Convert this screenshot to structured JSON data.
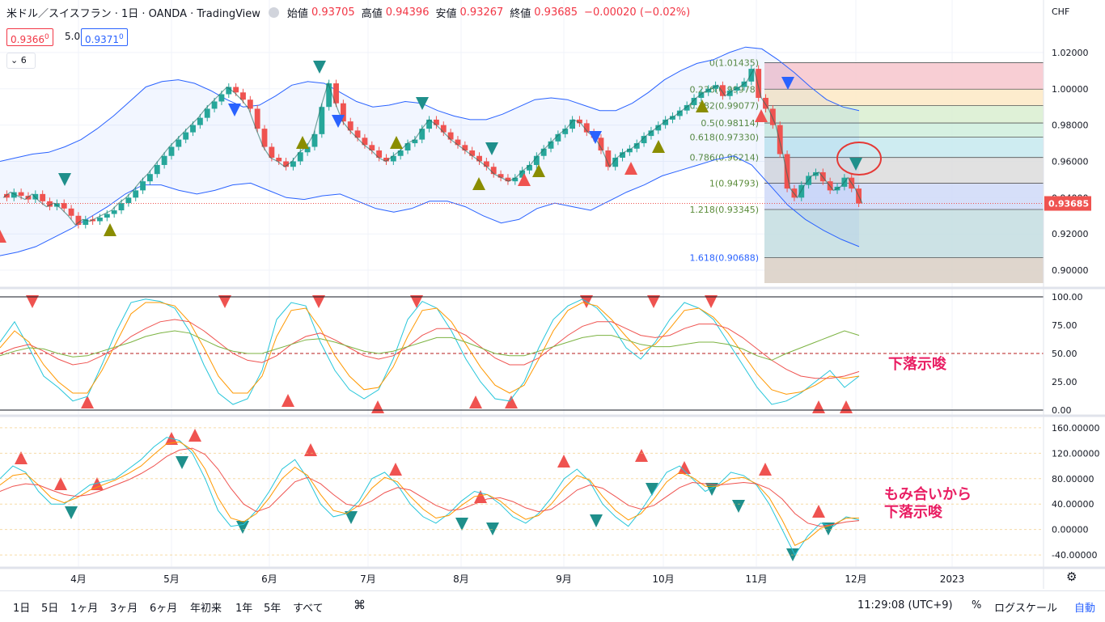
{
  "header": {
    "symbol": "米ドル／スイスフラン · 1日 · OANDA · TradingView",
    "open_label": "始値",
    "open_value": "0.93705",
    "high_label": "高値",
    "high_value": "0.94396",
    "low_label": "安値",
    "low_value": "0.93267",
    "close_label": "終値",
    "close_value": "0.93685",
    "change": "−0.00020 (−0.02%)"
  },
  "trade": {
    "bid": "0.9366",
    "bid_sup": "0",
    "spread": "5.0",
    "ask": "0.9371",
    "ask_sup": "0"
  },
  "indicators_toggle": "6",
  "currency": "CHF",
  "price_tag": "0.93685",
  "notes": {
    "rsi_note": "下落示唆",
    "macd_note_1": "もみ合いから",
    "macd_note_2": "下落示唆"
  },
  "bottom": {
    "timeframes": [
      "1日",
      "5日",
      "1ヶ月",
      "3ヶ月",
      "6ヶ月",
      "年初来",
      "1年",
      "5年",
      "すべて"
    ],
    "compare_icon": "calendar-range-icon",
    "time": "11:29:08 (UTC+9)",
    "percent": "%",
    "log": "ログスケール",
    "auto": "自動"
  },
  "colors": {
    "up": "#26a69a",
    "down": "#ef5350",
    "band": "#2962ff",
    "accent": "#2962ff"
  },
  "chart_data": [
    {
      "type": "candlestick",
      "name": "main",
      "x_ticks": [
        "4月",
        "5月",
        "6月",
        "7月",
        "8月",
        "9月",
        "10月",
        "11月",
        "12月",
        "2023"
      ],
      "y_ticks": [
        "1.02000",
        "1.00000",
        "0.98000",
        "0.96000",
        "0.94000",
        "0.92000",
        "0.90000"
      ],
      "ylim": [
        0.892,
        1.032
      ],
      "fib_levels": [
        {
          "label": "0(1.01435)",
          "value": 1.01435
        },
        {
          "label": "0.236(0.99978)",
          "value": 0.99978
        },
        {
          "label": "0.382(0.99077)",
          "value": 0.99077
        },
        {
          "label": "0.5(0.98114)",
          "value": 0.98114
        },
        {
          "label": "0.618(0.97330)",
          "value": 0.9733
        },
        {
          "label": "0.786(0.96214)",
          "value": 0.96214
        },
        {
          "label": "1(0.94793)",
          "value": 0.94793
        },
        {
          "label": "1.218(0.93345)",
          "value": 0.93345
        },
        {
          "label": "1.618(0.90688)",
          "value": 0.90688
        }
      ],
      "close_series": [
        0.94,
        0.943,
        0.941,
        0.939,
        0.942,
        0.938,
        0.935,
        0.937,
        0.934,
        0.93,
        0.925,
        0.928,
        0.927,
        0.929,
        0.931,
        0.933,
        0.937,
        0.94,
        0.944,
        0.949,
        0.953,
        0.958,
        0.963,
        0.968,
        0.972,
        0.976,
        0.98,
        0.984,
        0.989,
        0.993,
        0.997,
        1.001,
        0.998,
        0.994,
        0.989,
        0.978,
        0.968,
        0.962,
        0.96,
        0.957,
        0.96,
        0.965,
        0.968,
        0.975,
        0.99,
        1.003,
        0.992,
        0.982,
        0.977,
        0.973,
        0.969,
        0.966,
        0.962,
        0.96,
        0.963,
        0.966,
        0.97,
        0.972,
        0.978,
        0.983,
        0.98,
        0.976,
        0.972,
        0.969,
        0.966,
        0.963,
        0.96,
        0.957,
        0.953,
        0.951,
        0.949,
        0.951,
        0.955,
        0.958,
        0.963,
        0.967,
        0.971,
        0.975,
        0.978,
        0.983,
        0.981,
        0.976,
        0.973,
        0.966,
        0.957,
        0.962,
        0.965,
        0.967,
        0.97,
        0.974,
        0.977,
        0.98,
        0.983,
        0.985,
        0.988,
        0.991,
        0.995,
        0.998,
        1.0,
        1.002,
        0.996,
        0.999,
        1.001,
        1.004,
        1.011,
        0.995,
        0.989,
        0.98,
        0.964,
        0.945,
        0.94,
        0.947,
        0.952,
        0.954,
        0.949,
        0.944,
        0.946,
        0.951,
        0.945,
        0.9368
      ],
      "bollinger_upper": [
        0.96,
        0.962,
        0.964,
        0.965,
        0.968,
        0.972,
        0.978,
        0.985,
        0.993,
        1.001,
        1.004,
        1.005,
        1.003,
        0.999,
        0.994,
        0.99,
        0.991,
        0.996,
        1.002,
        1.004,
        1.003,
        0.998,
        0.993,
        0.99,
        0.991,
        0.993,
        0.992,
        0.988,
        0.985,
        0.983,
        0.983,
        0.986,
        0.99,
        0.994,
        0.995,
        0.994,
        0.991,
        0.988,
        0.988,
        0.992,
        0.998,
        1.005,
        1.01,
        1.014,
        1.016,
        1.02,
        1.023,
        1.022,
        1.016,
        1.009,
        1.001,
        0.994,
        0.99,
        0.988
      ],
      "bollinger_lower": [
        0.908,
        0.91,
        0.913,
        0.918,
        0.923,
        0.929,
        0.935,
        0.942,
        0.947,
        0.947,
        0.944,
        0.942,
        0.944,
        0.947,
        0.948,
        0.944,
        0.94,
        0.939,
        0.941,
        0.942,
        0.938,
        0.934,
        0.932,
        0.934,
        0.938,
        0.938,
        0.935,
        0.93,
        0.926,
        0.928,
        0.934,
        0.937,
        0.935,
        0.933,
        0.938,
        0.943,
        0.947,
        0.952,
        0.955,
        0.958,
        0.961,
        0.963,
        0.958,
        0.947,
        0.936,
        0.928,
        0.922,
        0.917,
        0.913
      ]
    },
    {
      "type": "line",
      "name": "stochastic-rsi",
      "y_ticks": [
        "100.00",
        "75.00",
        "50.00",
        "25.00",
        "0.00"
      ],
      "ylim": [
        0,
        100
      ],
      "series": [
        {
          "values": [
            60,
            78,
            55,
            30,
            20,
            8,
            12,
            40,
            70,
            95,
            98,
            96,
            90,
            70,
            40,
            15,
            5,
            10,
            35,
            80,
            95,
            92,
            60,
            35,
            18,
            10,
            18,
            45,
            80,
            96,
            90,
            70,
            45,
            25,
            10,
            8,
            25,
            55,
            80,
            92,
            98,
            90,
            75,
            55,
            45,
            60,
            80,
            95,
            90,
            80,
            60,
            40,
            20,
            5,
            8,
            15,
            25,
            35,
            20,
            30
          ]
        },
        {
          "values": [
            55,
            70,
            60,
            40,
            25,
            15,
            15,
            35,
            60,
            85,
            95,
            95,
            92,
            78,
            55,
            30,
            15,
            15,
            30,
            65,
            88,
            90,
            72,
            48,
            30,
            18,
            20,
            38,
            65,
            88,
            90,
            78,
            58,
            38,
            22,
            15,
            22,
            45,
            70,
            88,
            95,
            92,
            80,
            65,
            52,
            58,
            72,
            88,
            90,
            82,
            68,
            50,
            32,
            18,
            14,
            16,
            22,
            30,
            28,
            30
          ]
        },
        {
          "values": [
            50,
            55,
            58,
            52,
            45,
            40,
            42,
            48,
            55,
            65,
            72,
            78,
            80,
            78,
            70,
            60,
            50,
            44,
            42,
            48,
            58,
            65,
            68,
            62,
            55,
            48,
            45,
            48,
            56,
            66,
            72,
            72,
            66,
            56,
            46,
            40,
            40,
            46,
            56,
            66,
            74,
            78,
            78,
            72,
            66,
            64,
            66,
            72,
            76,
            76,
            72,
            64,
            54,
            44,
            36,
            30,
            28,
            28,
            30,
            34
          ]
        },
        {
          "values": [
            48,
            52,
            55,
            54,
            50,
            47,
            48,
            52,
            56,
            60,
            65,
            68,
            70,
            68,
            62,
            56,
            52,
            50,
            50,
            54,
            58,
            62,
            63,
            60,
            56,
            52,
            50,
            52,
            56,
            60,
            64,
            64,
            60,
            55,
            50,
            48,
            48,
            52,
            56,
            60,
            64,
            66,
            66,
            62,
            58,
            56,
            56,
            58,
            60,
            60,
            58,
            54,
            48,
            44,
            50,
            55,
            60,
            65,
            70,
            66
          ]
        }
      ]
    },
    {
      "type": "line",
      "name": "macd-like",
      "y_ticks": [
        "160.00000",
        "120.00000",
        "80.00000",
        "40.00000",
        "0.00000",
        "-40.00000"
      ],
      "ylim": [
        -45,
        165
      ],
      "series": [
        {
          "values": [
            80,
            100,
            90,
            60,
            40,
            40,
            55,
            70,
            75,
            80,
            95,
            110,
            130,
            145,
            140,
            120,
            80,
            30,
            5,
            8,
            30,
            60,
            95,
            110,
            80,
            40,
            20,
            25,
            45,
            80,
            90,
            70,
            40,
            20,
            10,
            25,
            45,
            60,
            55,
            40,
            20,
            10,
            25,
            50,
            80,
            95,
            75,
            40,
            20,
            5,
            30,
            60,
            90,
            100,
            80,
            60,
            70,
            90,
            85,
            70,
            40,
            0,
            -40,
            -10,
            10,
            5,
            20,
            15
          ]
        },
        {
          "values": [
            70,
            85,
            88,
            70,
            50,
            42,
            50,
            62,
            70,
            78,
            88,
            100,
            118,
            135,
            138,
            125,
            95,
            50,
            18,
            12,
            25,
            50,
            80,
            98,
            85,
            55,
            30,
            25,
            38,
            65,
            82,
            75,
            52,
            32,
            18,
            22,
            38,
            52,
            55,
            45,
            28,
            16,
            22,
            40,
            65,
            85,
            78,
            52,
            30,
            15,
            25,
            48,
            75,
            90,
            82,
            68,
            68,
            80,
            82,
            72,
            50,
            15,
            -25,
            -15,
            2,
            8,
            18,
            18
          ]
        },
        {
          "values": [
            60,
            68,
            72,
            70,
            62,
            55,
            52,
            55,
            62,
            70,
            78,
            88,
            100,
            115,
            125,
            128,
            118,
            95,
            65,
            40,
            28,
            35,
            55,
            75,
            82,
            72,
            55,
            40,
            36,
            45,
            58,
            66,
            62,
            50,
            38,
            30,
            32,
            40,
            48,
            50,
            44,
            34,
            28,
            32,
            46,
            62,
            70,
            65,
            52,
            38,
            32,
            38,
            52,
            66,
            74,
            72,
            70,
            72,
            74,
            72,
            64,
            48,
            25,
            10,
            5,
            8,
            12,
            14
          ]
        }
      ]
    }
  ]
}
